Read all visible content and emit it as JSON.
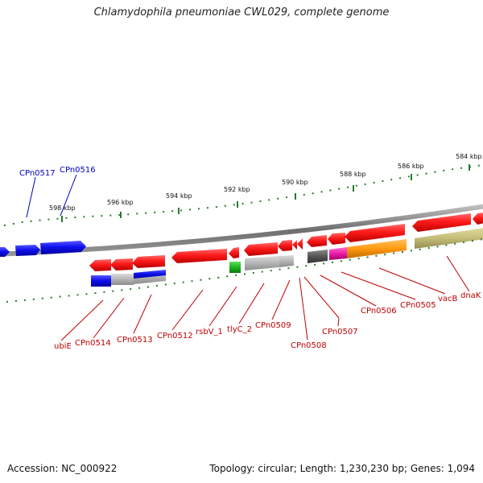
{
  "title": "Chlamydophila pneumoniae CWL029, complete genome",
  "footer": {
    "accession": "Accession: NC_000922",
    "summary": "Topology: circular; Length: 1,230,230 bp; Genes: 1,094"
  },
  "colors": {
    "backbone": "#8a8a8a",
    "ticks": "#2a7a2a",
    "red_label": "#c00000",
    "blue_label": "#0000c0"
  },
  "scale_labels": [
    "598 kbp",
    "596 kbp",
    "594 kbp",
    "592 kbp",
    "590 kbp",
    "588 kbp",
    "586 kbp",
    "584 kbp"
  ],
  "gene_labels_top": [
    {
      "id": "cpn0517",
      "text": "CPn0517",
      "color": "blue"
    },
    {
      "id": "cpn0516",
      "text": "CPn0516",
      "color": "blue"
    }
  ],
  "gene_labels_bottom": [
    {
      "id": "ubie",
      "text": "ubiE"
    },
    {
      "id": "cpn0514",
      "text": "CPn0514"
    },
    {
      "id": "cpn0513",
      "text": "CPn0513"
    },
    {
      "id": "cpn0512",
      "text": "CPn0512"
    },
    {
      "id": "rsbv1",
      "text": "rsbV_1"
    },
    {
      "id": "tlyc2",
      "text": "tlyC_2"
    },
    {
      "id": "cpn0509",
      "text": "CPn0509"
    },
    {
      "id": "cpn0508",
      "text": "CPn0508"
    },
    {
      "id": "cpn0507",
      "text": "CPn0507"
    },
    {
      "id": "cpn0506",
      "text": "CPn0506"
    },
    {
      "id": "cpn0505",
      "text": "CPn0505"
    },
    {
      "id": "vacb",
      "text": "vacB"
    },
    {
      "id": "dnak",
      "text": "dnaK"
    }
  ]
}
